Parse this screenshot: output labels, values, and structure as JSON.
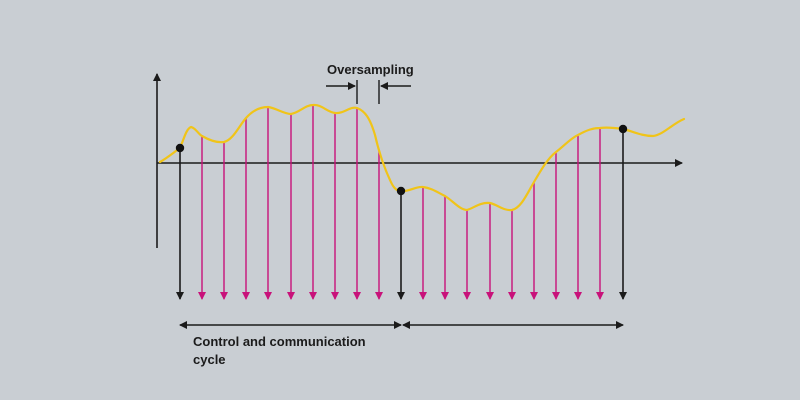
{
  "labels": {
    "oversampling": "Oversampling",
    "cycle_line1": "Control and communication",
    "cycle_line2": "cycle"
  },
  "colors": {
    "background": "#c9ced3",
    "axis": "#1b1b1b",
    "signal": "#f0c419",
    "oversample_arrows": "#c8127a",
    "cycle_arrows": "#1b1b1b"
  }
}
